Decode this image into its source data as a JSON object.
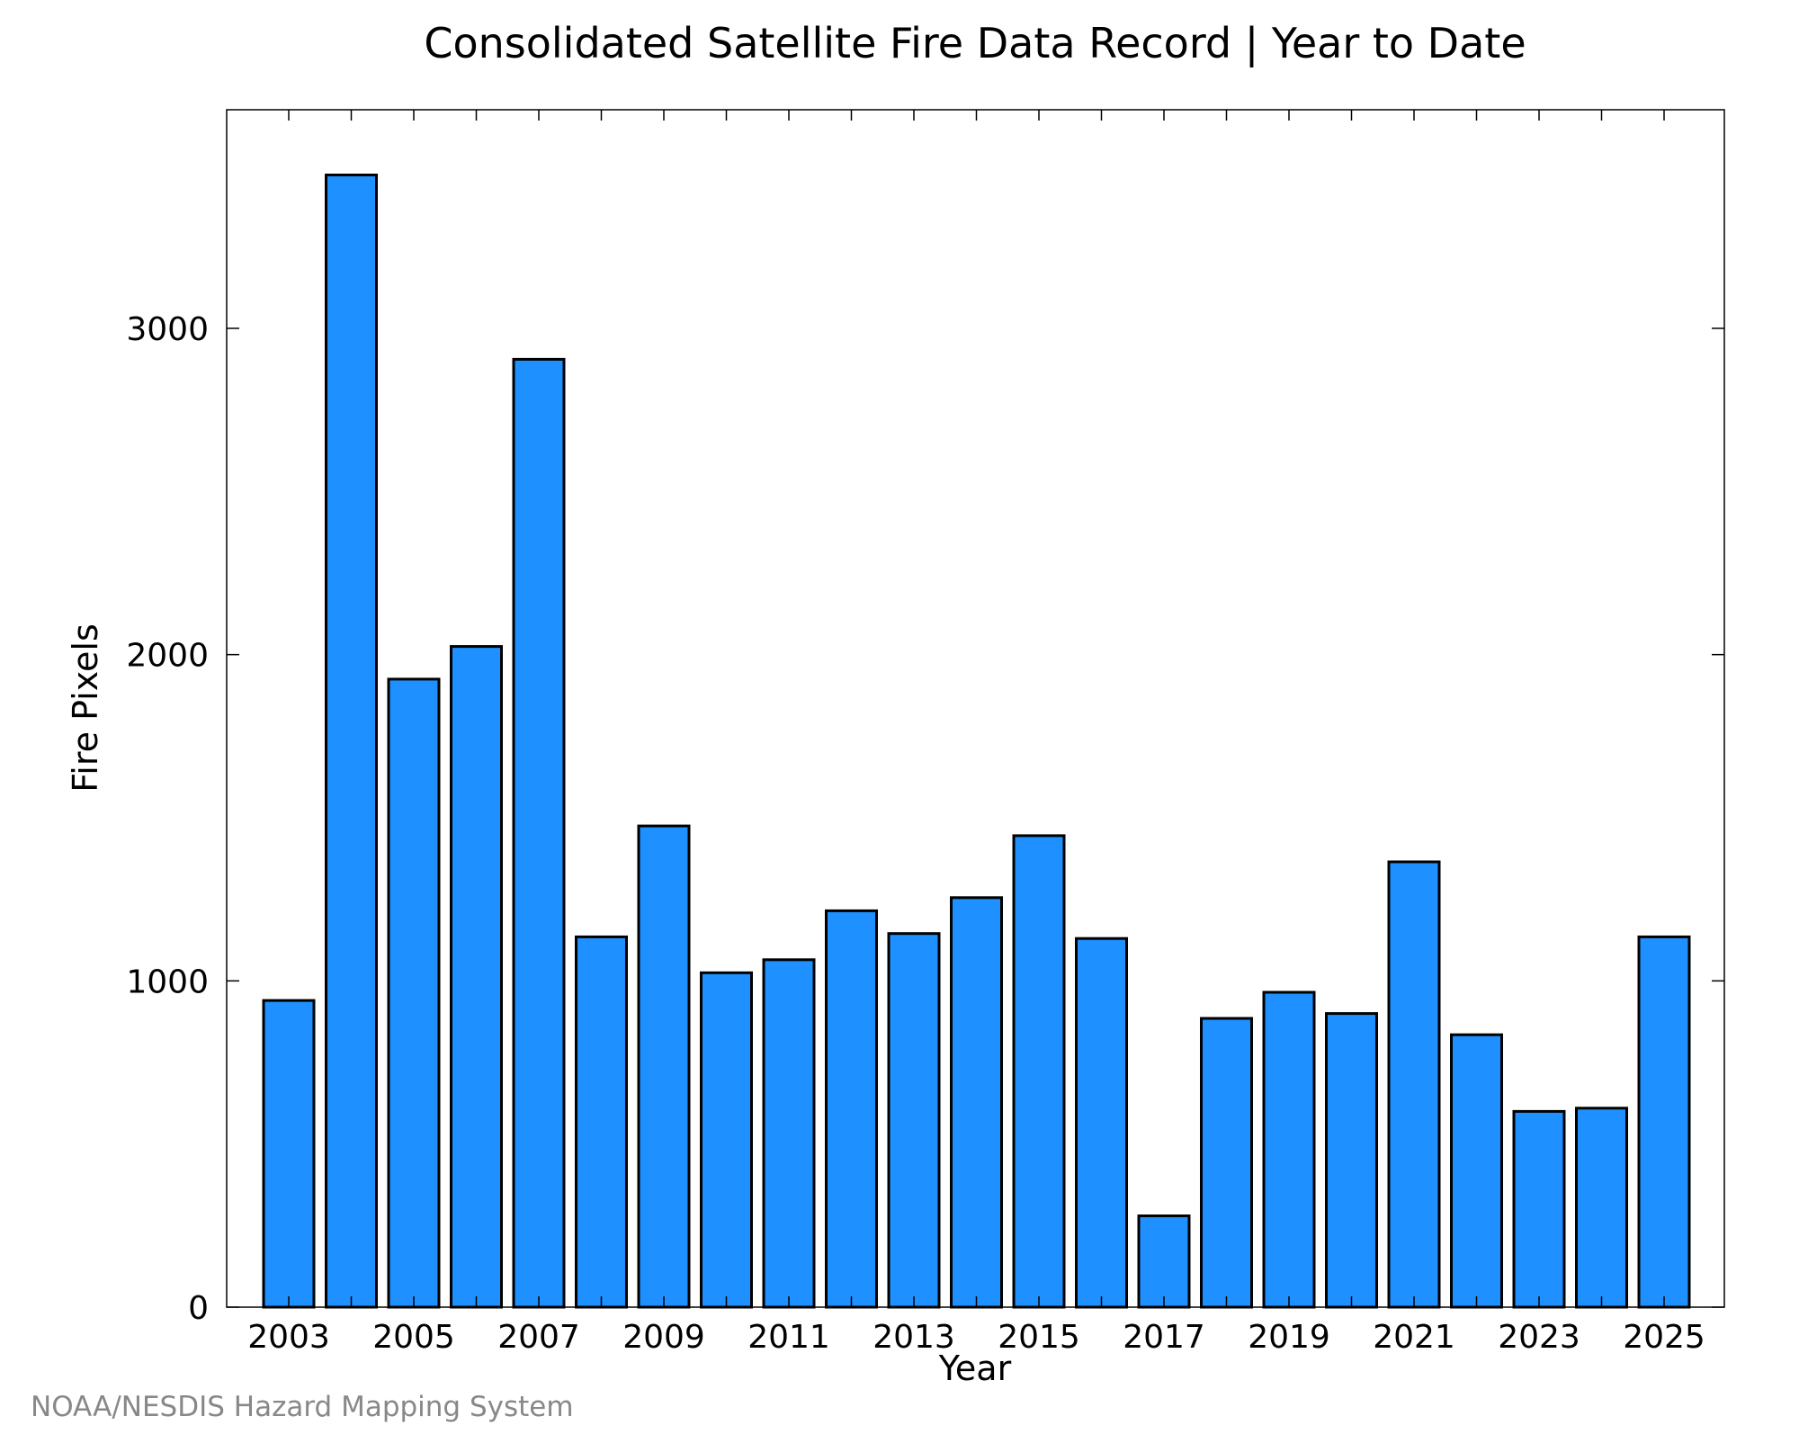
{
  "colors": {
    "bar_fill": "#1e90ff",
    "bar_stroke": "#000000",
    "axis": "#000000",
    "credit_text": "#888888",
    "background": "#ffffff"
  },
  "chart_data": {
    "type": "bar",
    "title": "Consolidated Satellite Fire Data Record | Year to Date",
    "xlabel": "Year",
    "ylabel": "Fire Pixels",
    "categories": [
      "2003",
      "2004",
      "2005",
      "2006",
      "2007",
      "2008",
      "2009",
      "2010",
      "2011",
      "2012",
      "2013",
      "2014",
      "2015",
      "2016",
      "2017",
      "2018",
      "2019",
      "2020",
      "2021",
      "2022",
      "2023",
      "2024",
      "2025"
    ],
    "values": [
      940,
      3470,
      1925,
      2025,
      2905,
      1135,
      1475,
      1025,
      1065,
      1215,
      1145,
      1255,
      1445,
      1130,
      280,
      885,
      965,
      900,
      1365,
      835,
      600,
      610,
      1135
    ],
    "xtick_labels": [
      "2003",
      "2005",
      "2007",
      "2009",
      "2011",
      "2013",
      "2015",
      "2017",
      "2019",
      "2021",
      "2023",
      "2025"
    ],
    "ytick_labels": [
      "0",
      "1000",
      "2000",
      "3000"
    ],
    "yticks": [
      0,
      1000,
      2000,
      3000
    ],
    "ylim": [
      0,
      3670
    ],
    "grid": false,
    "legend": "none",
    "credit": "NOAA/NESDIS Hazard Mapping System"
  }
}
